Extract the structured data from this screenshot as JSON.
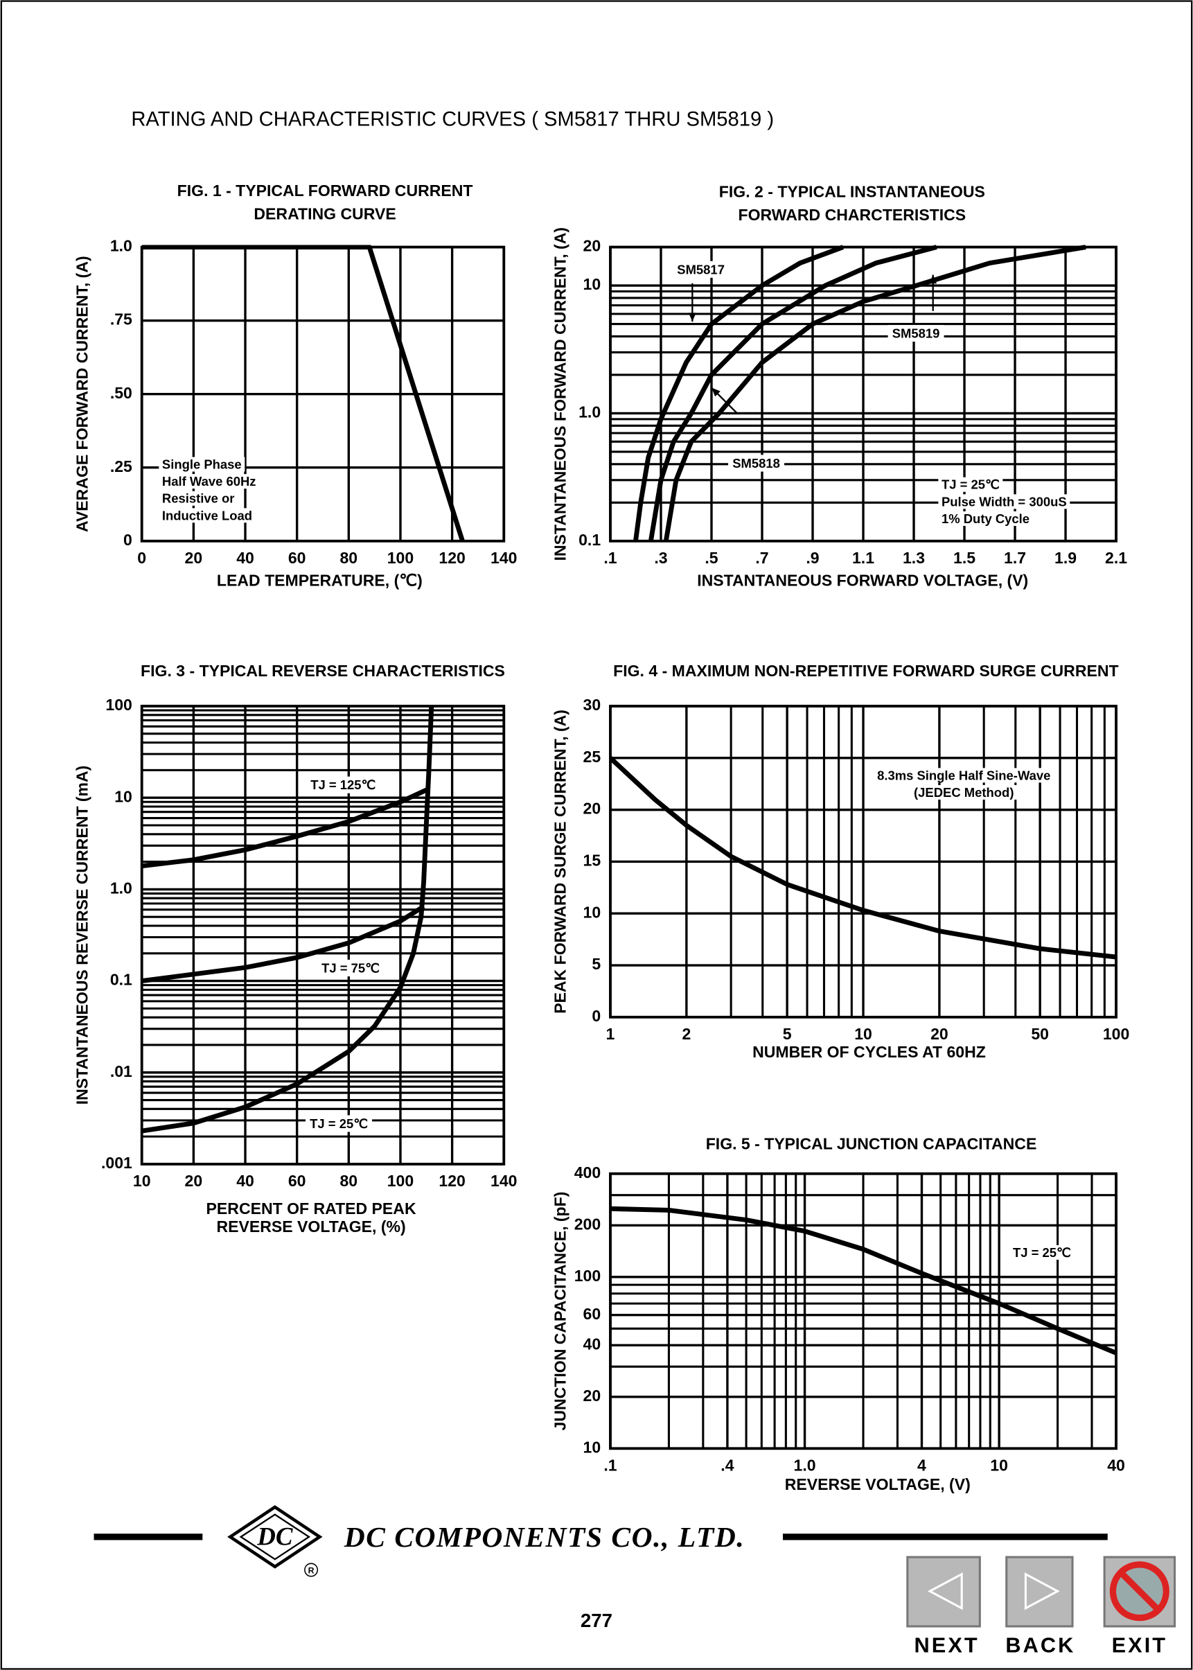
{
  "page": {
    "title": "RATING AND CHARACTERISTIC CURVES ( SM5817 THRU SM5819 )",
    "logo": "DC",
    "company": "DC COMPONENTS CO., LTD.",
    "page_number": "277",
    "buttons": [
      "NEXT",
      "BACK",
      "EXIT"
    ]
  },
  "chart_data": [
    {
      "type": "line",
      "title": [
        "FIG. 1 - TYPICAL FORWARD CURRENT",
        "DERATING CURVE"
      ],
      "xlabel": [
        "LEAD TEMPERATURE, (℃)"
      ],
      "ylabel": "AVERAGE FORWARD CURRENT, (A)",
      "xlim": [
        0,
        140
      ],
      "xticks": [
        0,
        20,
        40,
        60,
        80,
        100,
        120,
        140
      ],
      "ylim": [
        0,
        1
      ],
      "yticks": [
        0,
        {
          "value": 0.25,
          "label": ".25"
        },
        {
          "value": 0.5,
          "label": ".50"
        },
        {
          "value": 0.75,
          "label": ".75"
        },
        {
          "value": 1,
          "label": "1.0"
        }
      ],
      "grid": true,
      "series": [
        {
          "color": "#000000",
          "x": [
            0,
            88,
            124
          ],
          "values": [
            1,
            1,
            0
          ]
        }
      ],
      "annotations": [
        [
          "Single Phase",
          "Half Wave 60Hz",
          "Resistive or",
          "Inductive Load"
        ]
      ]
    },
    {
      "type": "line",
      "title": [
        "FIG. 2 - TYPICAL INSTANTANEOUS",
        "FORWARD CHARCTERISTICS"
      ],
      "xlabel": [
        "INSTANTANEOUS FORWARD VOLTAGE, (V)"
      ],
      "ylabel": "INSTANTANEOUS FORWARD CURRENT, (A)",
      "xlim": [
        0.1,
        2.1
      ],
      "xticks": [
        {
          "value": 0.1,
          "label": ".1"
        },
        {
          "value": 0.3,
          "label": ".3"
        },
        {
          "value": 0.5,
          "label": ".5"
        },
        {
          "value": 0.7,
          "label": ".7"
        },
        {
          "value": 0.9,
          "label": ".9"
        },
        1.1,
        1.3,
        1.5,
        1.7,
        1.9,
        2.1
      ],
      "ylim": [
        0.1,
        20
      ],
      "ylog": true,
      "yticks": [
        0.1,
        {
          "value": 1,
          "label": "1.0"
        },
        10,
        20
      ],
      "yminor": [
        0.2,
        0.3,
        0.4,
        0.5,
        0.6,
        0.7,
        0.8,
        0.9,
        2,
        3,
        4,
        5,
        6,
        7,
        8,
        9
      ],
      "grid": true,
      "series": [
        {
          "name": "SM5817",
          "color": "#000000",
          "x": [
            0.2,
            0.22,
            0.25,
            0.3,
            0.4,
            0.5,
            0.7,
            0.85,
            1.02
          ],
          "values": [
            0.1,
            0.2,
            0.45,
            0.9,
            2.5,
            5,
            10,
            15,
            20
          ]
        },
        {
          "name": "SM5818",
          "color": "#000000",
          "x": [
            0.26,
            0.3,
            0.35,
            0.42,
            0.5,
            0.7,
            0.95,
            1.15,
            1.39
          ],
          "values": [
            0.1,
            0.3,
            0.6,
            1,
            2,
            5,
            10,
            15,
            20
          ]
        },
        {
          "name": "SM5819",
          "color": "#000000",
          "x": [
            0.32,
            0.36,
            0.42,
            0.53,
            0.7,
            0.9,
            1.1,
            1.31,
            1.6,
            1.98
          ],
          "values": [
            0.1,
            0.3,
            0.6,
            1,
            2.5,
            5,
            7.5,
            10,
            15,
            20
          ]
        }
      ],
      "annotations": [
        [
          "TJ = 25℃",
          "Pulse Width = 300uS",
          "1% Duty Cycle"
        ]
      ]
    },
    {
      "type": "line",
      "title": [
        "FIG. 3 - TYPICAL REVERSE CHARACTERISTICS"
      ],
      "xlabel": [
        "PERCENT OF RATED PEAK",
        "REVERSE VOLTAGE, (%)"
      ],
      "ylabel": "INSTANTANEOUS REVERSE CURRENT (mA)",
      "xlim": [
        10,
        140
      ],
      "xticks": [
        10,
        20,
        40,
        60,
        80,
        100,
        120,
        140
      ],
      "ylim": [
        0.001,
        100
      ],
      "ylog": true,
      "yticks": [
        {
          "value": 0.001,
          "label": ".001"
        },
        {
          "value": 0.01,
          "label": ".01"
        },
        0.1,
        {
          "value": 1,
          "label": "1.0"
        },
        10,
        100
      ],
      "yminor": [
        0.002,
        0.003,
        0.004,
        0.005,
        0.006,
        0.007,
        0.008,
        0.009,
        0.02,
        0.03,
        0.04,
        0.05,
        0.06,
        0.07,
        0.08,
        0.09,
        0.2,
        0.3,
        0.4,
        0.5,
        0.6,
        0.7,
        0.8,
        0.9,
        2,
        3,
        4,
        5,
        6,
        7,
        8,
        9,
        20,
        30,
        40,
        50,
        60,
        70,
        80,
        90
      ],
      "grid": true,
      "series": [
        {
          "name": "TJ = 125℃",
          "color": "#000000",
          "x": [
            10,
            20,
            40,
            60,
            80,
            100,
            111
          ],
          "values": [
            1.8,
            2.1,
            2.7,
            3.8,
            5.5,
            9,
            12.5
          ]
        },
        {
          "name": "TJ = 75℃",
          "color": "#000000",
          "x": [
            10,
            40,
            60,
            80,
            100,
            109
          ],
          "values": [
            0.1,
            0.14,
            0.18,
            0.26,
            0.45,
            0.65
          ]
        },
        {
          "name": "TJ = 25℃",
          "color": "#000000",
          "x": [
            10,
            20,
            40,
            60,
            80,
            90,
            100,
            105,
            108,
            109,
            110,
            111,
            112
          ],
          "values": [
            0.0023,
            0.0028,
            0.0042,
            0.0075,
            0.017,
            0.032,
            0.085,
            0.2,
            0.5,
            1.2,
            5,
            20,
            100
          ]
        }
      ]
    },
    {
      "type": "line",
      "title": [
        "FIG. 4 - MAXIMUM NON-REPETITIVE FORWARD SURGE CURRENT"
      ],
      "xlabel": [
        "NUMBER OF CYCLES AT 60HZ"
      ],
      "ylabel": "PEAK FORWARD SURGE CURRENT, (A)",
      "xlim": [
        1,
        100
      ],
      "xlog": true,
      "xticks": [
        1,
        2,
        5,
        10,
        20,
        50,
        100
      ],
      "xminor": [
        3,
        4,
        6,
        7,
        8,
        9,
        30,
        40,
        60,
        70,
        80,
        90
      ],
      "ylim": [
        0,
        30
      ],
      "yticks": [
        0,
        5,
        10,
        15,
        20,
        25,
        30
      ],
      "grid": true,
      "series": [
        {
          "color": "#000000",
          "x": [
            1,
            1.5,
            2,
            3,
            5,
            10,
            20,
            50,
            100
          ],
          "values": [
            25,
            21,
            18.5,
            15.5,
            12.8,
            10.3,
            8.3,
            6.6,
            5.8
          ]
        }
      ],
      "annotations": [
        [
          "8.3ms Single Half Sine-Wave",
          "(JEDEC Method)"
        ]
      ]
    },
    {
      "type": "line",
      "title": [
        "FIG. 5 - TYPICAL JUNCTION CAPACITANCE"
      ],
      "xlabel": [
        "REVERSE VOLTAGE, (V)"
      ],
      "ylabel": "JUNCTION CAPACITANCE, (pF)",
      "xlim": [
        0.1,
        40
      ],
      "xlog": true,
      "xticks": [
        {
          "value": 0.1,
          "label": ".1"
        },
        {
          "value": 0.4,
          "label": ".4"
        },
        {
          "value": 1,
          "label": "1.0"
        },
        4,
        10,
        40
      ],
      "xminor": [
        0.2,
        0.3,
        0.5,
        0.6,
        0.7,
        0.8,
        0.9,
        2,
        3,
        5,
        6,
        7,
        8,
        9,
        20,
        30
      ],
      "ylim": [
        10,
        400
      ],
      "ylog": true,
      "yticks": [
        10,
        20,
        40,
        60,
        100,
        200,
        400
      ],
      "yminor": [
        30,
        50,
        70,
        80,
        90,
        300
      ],
      "grid": true,
      "series": [
        {
          "color": "#000000",
          "x": [
            0.1,
            0.2,
            0.5,
            1,
            2,
            4,
            10,
            20,
            40
          ],
          "values": [
            250,
            245,
            215,
            185,
            145,
            105,
            70,
            50,
            36
          ]
        }
      ],
      "annotations": [
        [
          "TJ = 25℃"
        ]
      ]
    }
  ]
}
